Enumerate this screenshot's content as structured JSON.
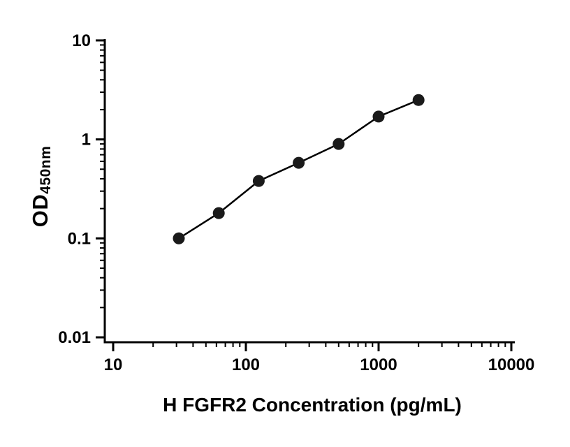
{
  "chart_data": {
    "type": "scatter",
    "title": "",
    "xlabel": "H FGFR2 Concentration (pg/mL)",
    "ylabel_main": "OD",
    "ylabel_sub": "450nm",
    "x_scale": "log",
    "y_scale": "log",
    "xlim": [
      10,
      10000
    ],
    "ylim": [
      0.01,
      10
    ],
    "x_ticks": [
      {
        "value": 10,
        "label": "10"
      },
      {
        "value": 100,
        "label": "100"
      },
      {
        "value": 1000,
        "label": "1000"
      },
      {
        "value": 10000,
        "label": "10000"
      }
    ],
    "y_ticks": [
      {
        "value": 0.01,
        "label": "0.01"
      },
      {
        "value": 0.1,
        "label": "0.1"
      },
      {
        "value": 1,
        "label": "1"
      },
      {
        "value": 10,
        "label": "10"
      }
    ],
    "points": [
      {
        "x": 31.25,
        "y": 0.1
      },
      {
        "x": 62.5,
        "y": 0.18
      },
      {
        "x": 125,
        "y": 0.38
      },
      {
        "x": 250,
        "y": 0.58
      },
      {
        "x": 500,
        "y": 0.9
      },
      {
        "x": 1000,
        "y": 1.7
      },
      {
        "x": 2000,
        "y": 2.5
      }
    ],
    "grid": false,
    "legend": null,
    "colors": {
      "axis": "#000000",
      "line": "#000000",
      "marker": "#1a1a1a",
      "background": "#ffffff"
    }
  }
}
